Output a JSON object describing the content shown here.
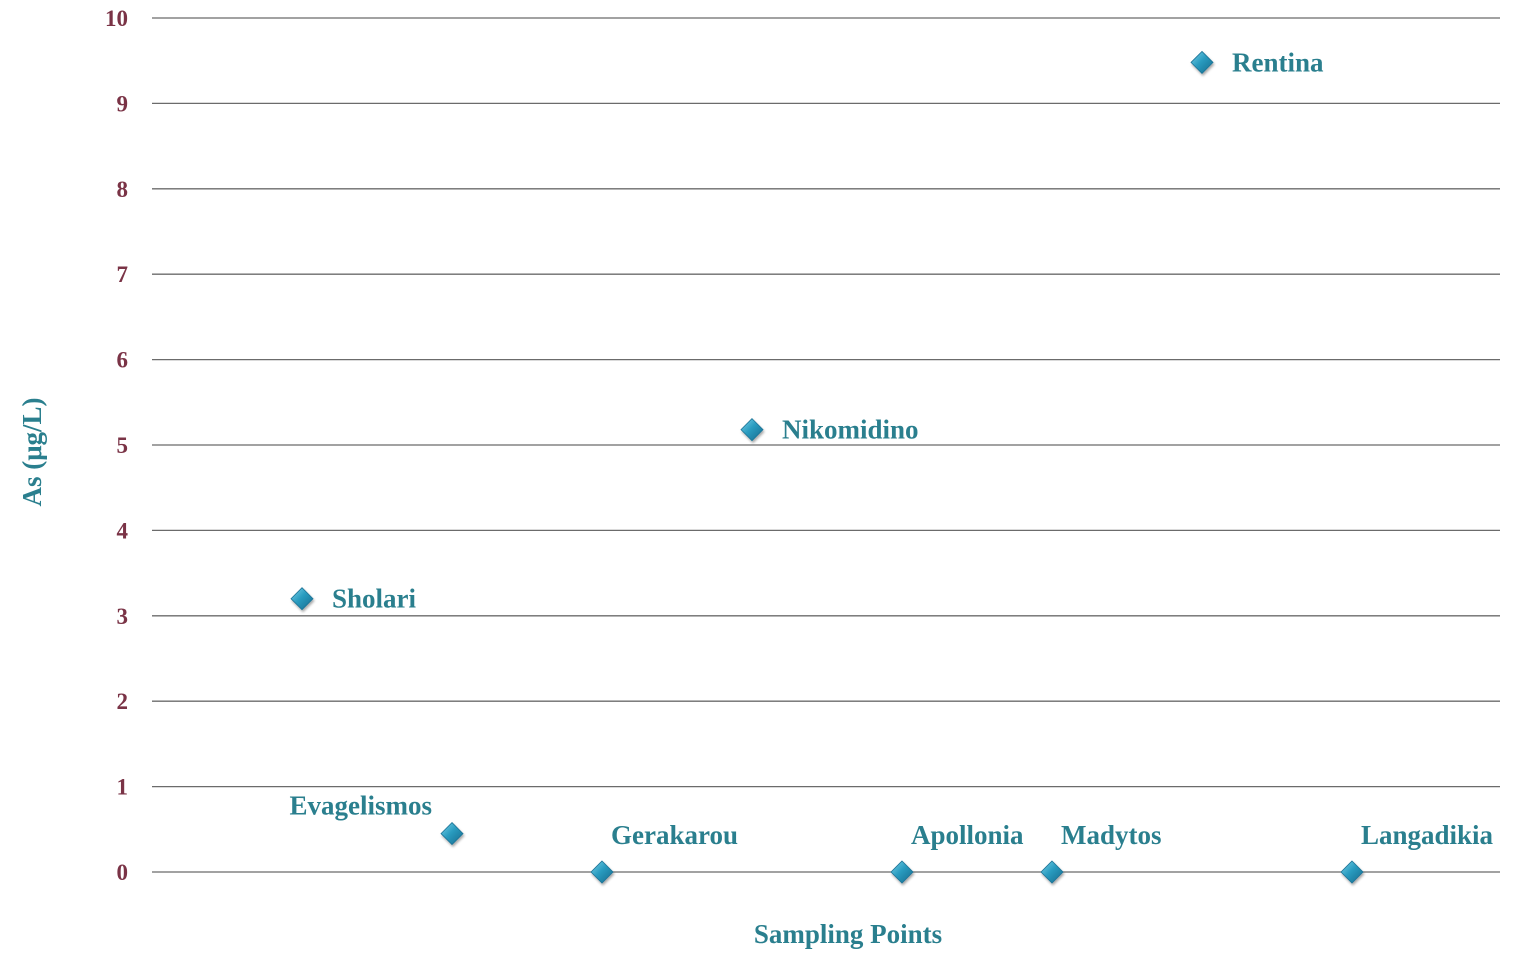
{
  "chart_data": {
    "type": "scatter",
    "title": "",
    "xlabel": "Sampling Points",
    "ylabel": "As (μg/L)",
    "ylim": [
      0,
      10
    ],
    "xlim": [
      0,
      9
    ],
    "y_ticks": [
      "0",
      "1",
      "2",
      "3",
      "4",
      "5",
      "6",
      "7",
      "8",
      "9",
      "10"
    ],
    "grid": "horizontal",
    "legend": "none",
    "points": [
      {
        "label": "Sholari",
        "x": 1,
        "y": 3.2,
        "label_position": "right"
      },
      {
        "label": "Evagelismos",
        "x": 2,
        "y": 0.45,
        "label_position": "above-left"
      },
      {
        "label": "Gerakarou",
        "x": 3,
        "y": 0,
        "label_position": "above-right"
      },
      {
        "label": "Nikomidino",
        "x": 4,
        "y": 5.18,
        "label_position": "right"
      },
      {
        "label": "Apollonia",
        "x": 5,
        "y": 0,
        "label_position": "above-right"
      },
      {
        "label": "Madytos",
        "x": 6,
        "y": 0,
        "label_position": "above-right"
      },
      {
        "label": "Rentina",
        "x": 7,
        "y": 9.48,
        "label_position": "right"
      },
      {
        "label": "Langadikia",
        "x": 8,
        "y": 0,
        "label_position": "above-right"
      }
    ]
  },
  "colors": {
    "marker": "#2a9cc0",
    "marker_dark": "#1b7396",
    "point_label": "#2a7f8e",
    "tick_label": "#7a3346",
    "axis_title": "#2a7f8e",
    "gridline": "#6b6b6b"
  },
  "marker_shape": "diamond"
}
